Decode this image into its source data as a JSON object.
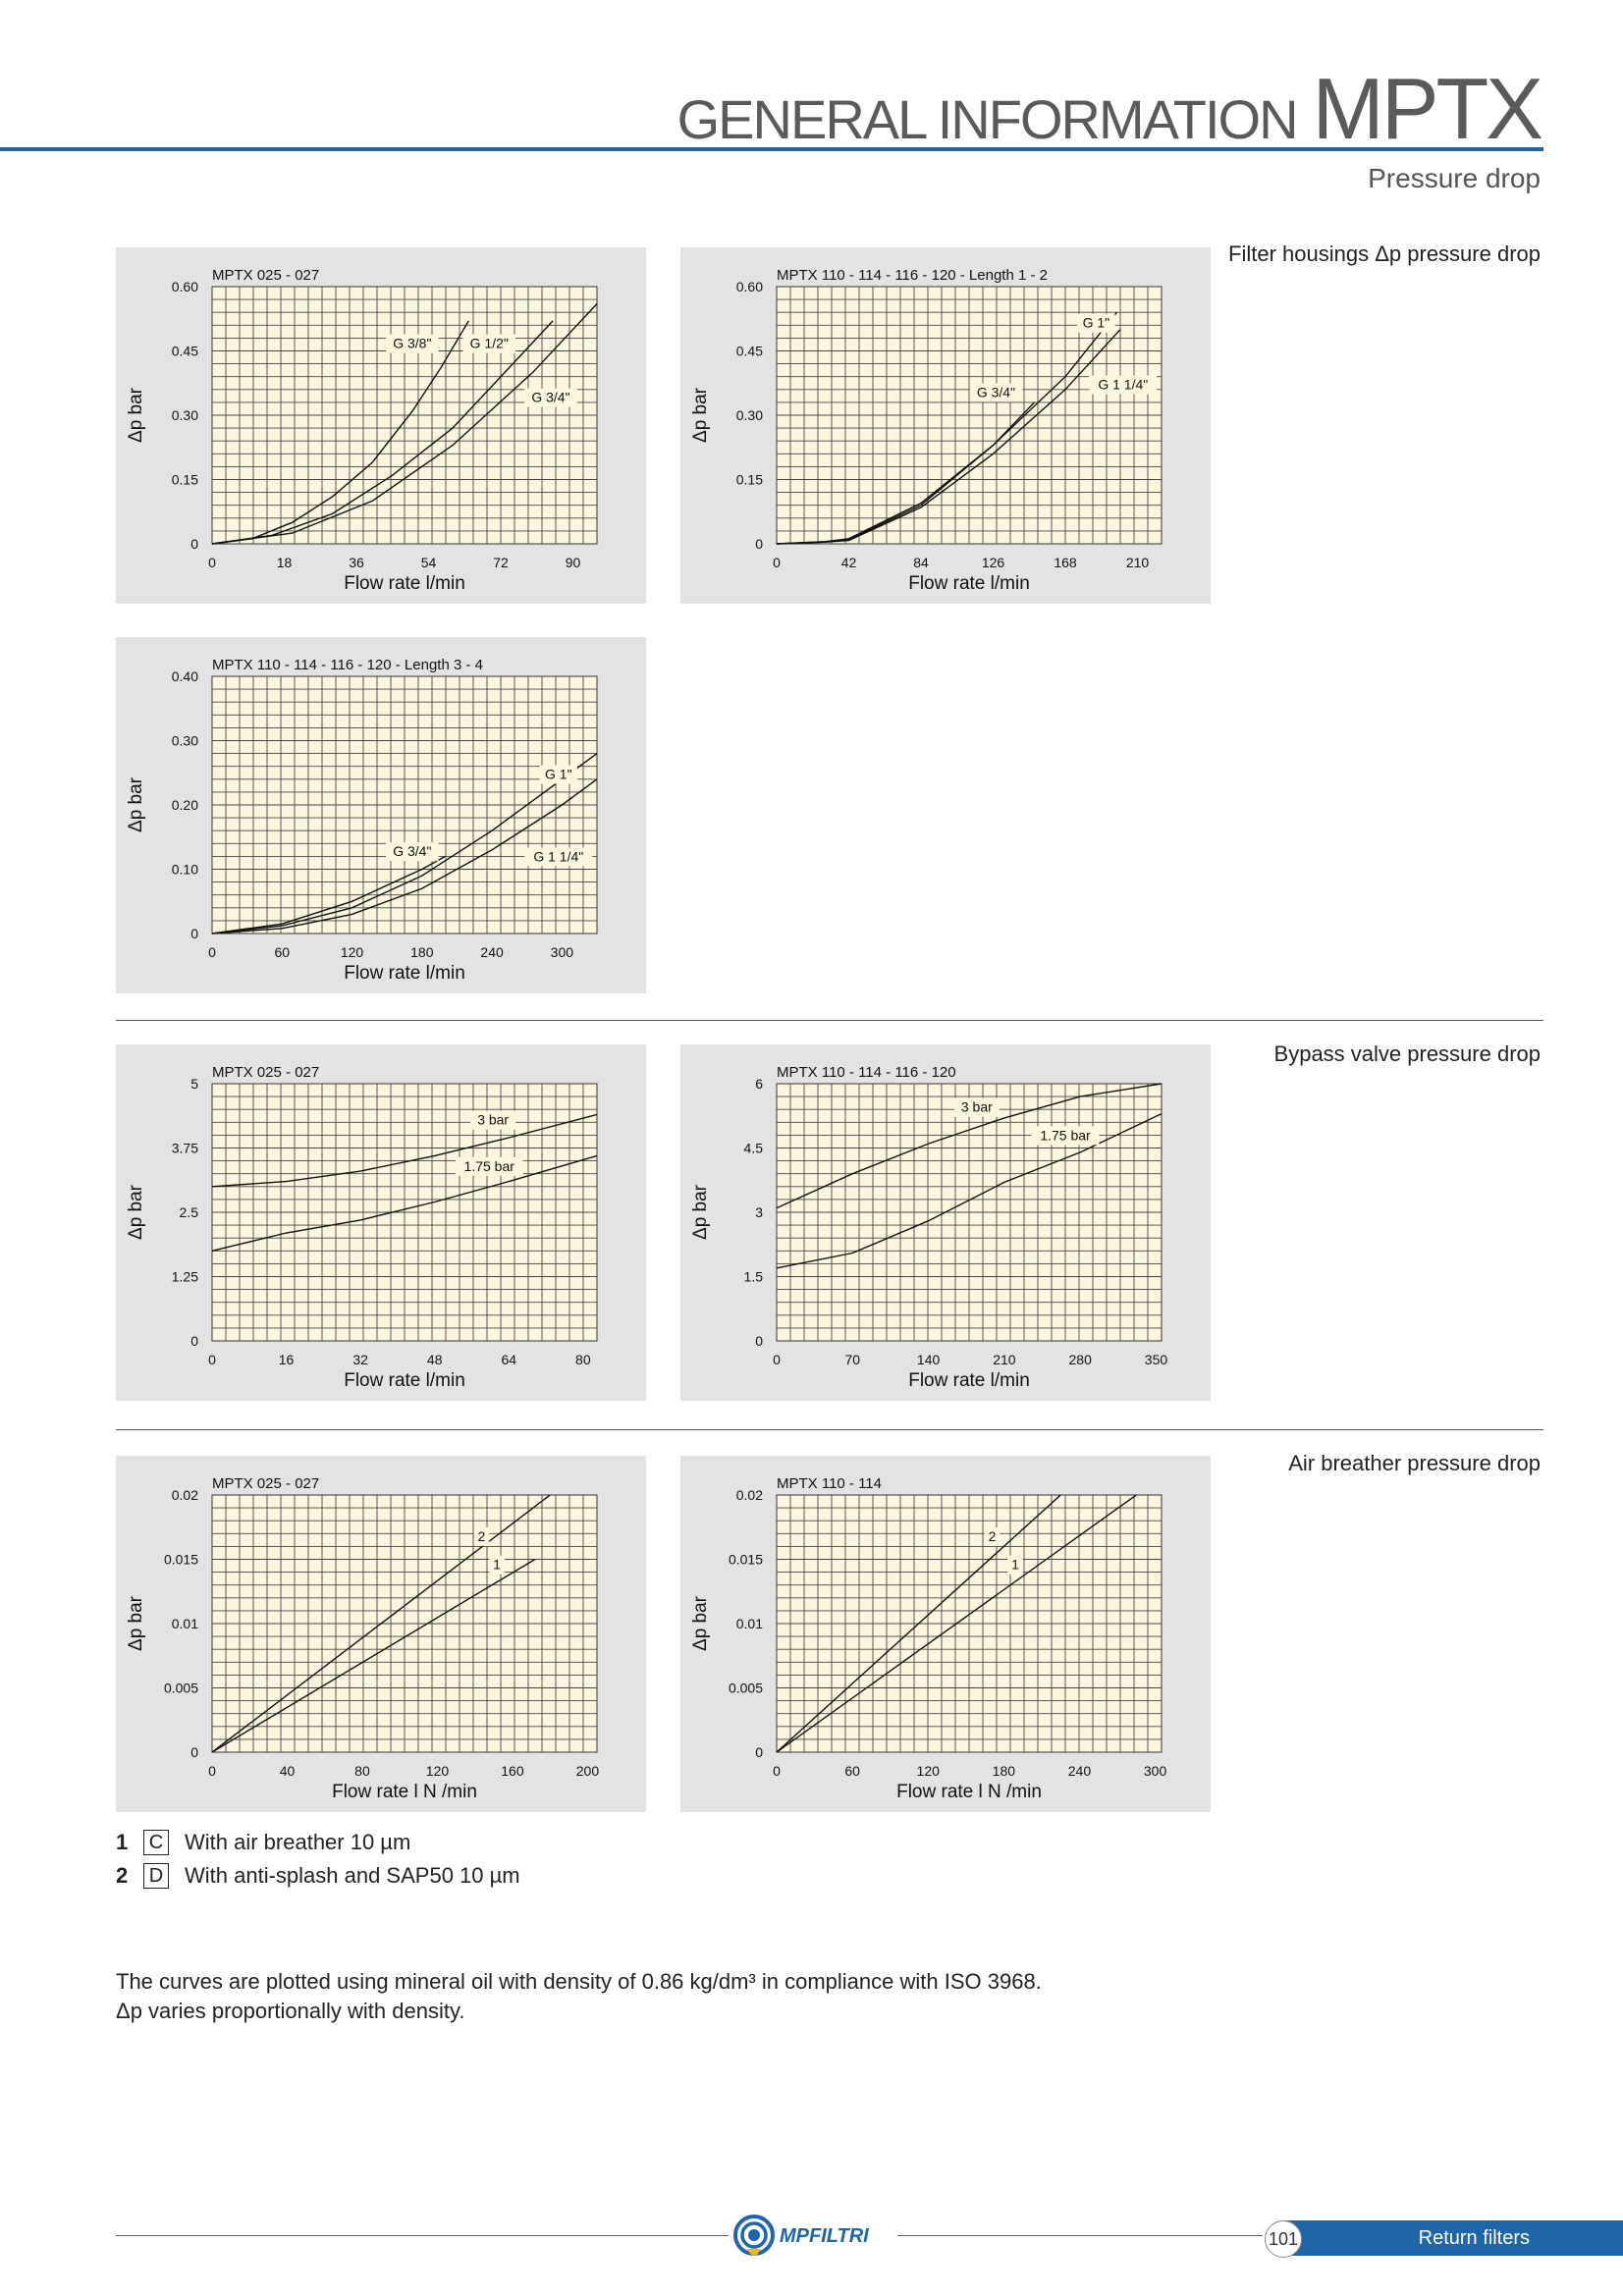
{
  "header": {
    "title_main": "GENERAL INFORMATION",
    "title_product": "MPTX",
    "subtitle": "Pressure drop"
  },
  "sections": {
    "filter_housings": "Filter housings Δp pressure drop",
    "bypass_valve": "Bypass valve pressure drop",
    "air_breather": "Air breather pressure drop"
  },
  "chart_data": [
    {
      "id": "fh1",
      "type": "line",
      "title": "MPTX 025 - 027",
      "xlabel": "Flow rate l/min",
      "ylabel": "Δp bar",
      "xlim": [
        0,
        96
      ],
      "ylim": [
        0,
        0.6
      ],
      "xticks": [
        "0",
        "18",
        "36",
        "54",
        "72",
        "90"
      ],
      "xtick_values": [
        0,
        18,
        36,
        54,
        72,
        90
      ],
      "yticks": [
        "0",
        "0.15",
        "0.30",
        "0.45",
        "0.60"
      ],
      "ytick_values": [
        0,
        0.15,
        0.3,
        0.45,
        0.6
      ],
      "grid": true,
      "series": [
        {
          "name": "G 3/8\"",
          "x": [
            0,
            10,
            20,
            30,
            40,
            50,
            57,
            64
          ],
          "y": [
            0,
            0.012,
            0.05,
            0.11,
            0.19,
            0.31,
            0.41,
            0.52
          ]
        },
        {
          "name": "G 1/2\"",
          "x": [
            0,
            15,
            30,
            45,
            60,
            75,
            85
          ],
          "y": [
            0,
            0.02,
            0.07,
            0.16,
            0.27,
            0.42,
            0.52
          ]
        },
        {
          "name": "G 3/4\"",
          "x": [
            0,
            20,
            40,
            60,
            80,
            96
          ],
          "y": [
            0,
            0.025,
            0.1,
            0.23,
            0.4,
            0.56
          ]
        }
      ]
    },
    {
      "id": "fh2",
      "type": "line",
      "title": "MPTX 110 - 114 - 116 - 120 - Length 1 - 2",
      "xlabel": "Flow rate l/min",
      "ylabel": "Δp bar",
      "xlim": [
        0,
        224
      ],
      "ylim": [
        0,
        0.6
      ],
      "xticks": [
        "0",
        "42",
        "84",
        "126",
        "168",
        "210"
      ],
      "xtick_values": [
        0,
        42,
        84,
        126,
        168,
        210
      ],
      "yticks": [
        "0",
        "0.15",
        "0.30",
        "0.45",
        "0.60"
      ],
      "ytick_values": [
        0,
        0.15,
        0.3,
        0.45,
        0.6
      ],
      "grid": true,
      "series": [
        {
          "name": "G 1\"",
          "x": [
            0,
            28,
            42,
            84,
            126,
            168,
            198
          ],
          "y": [
            0,
            0.005,
            0.01,
            0.09,
            0.23,
            0.39,
            0.54
          ]
        },
        {
          "name": "G 3/4\"",
          "x": [
            0,
            28,
            42,
            84,
            126,
            150
          ],
          "y": [
            0,
            0.005,
            0.012,
            0.095,
            0.23,
            0.33
          ]
        },
        {
          "name": "G 1 1/4\"",
          "x": [
            0,
            28,
            42,
            84,
            126,
            168,
            200
          ],
          "y": [
            0,
            0.004,
            0.008,
            0.085,
            0.21,
            0.36,
            0.5
          ]
        }
      ]
    },
    {
      "id": "fh3",
      "type": "line",
      "title": "MPTX 110 - 114 - 116 - 120 - Length 3 - 4",
      "xlabel": "Flow rate l/min",
      "ylabel": "Δp bar",
      "xlim": [
        0,
        330
      ],
      "ylim": [
        0,
        0.4
      ],
      "xticks": [
        "0",
        "60",
        "120",
        "180",
        "240",
        "300"
      ],
      "xtick_values": [
        0,
        60,
        120,
        180,
        240,
        300
      ],
      "yticks": [
        "0",
        "0.10",
        "0.20",
        "0.30",
        "0.40"
      ],
      "ytick_values": [
        0,
        0.1,
        0.2,
        0.3,
        0.4
      ],
      "grid": true,
      "series": [
        {
          "name": "G 1\"",
          "x": [
            0,
            60,
            120,
            180,
            240,
            300,
            330
          ],
          "y": [
            0,
            0.012,
            0.04,
            0.09,
            0.16,
            0.24,
            0.28
          ]
        },
        {
          "name": "G 3/4\"",
          "x": [
            0,
            60,
            120,
            180,
            200
          ],
          "y": [
            0,
            0.015,
            0.05,
            0.1,
            0.12
          ]
        },
        {
          "name": "G 1 1/4\"",
          "x": [
            0,
            60,
            120,
            180,
            240,
            300,
            330
          ],
          "y": [
            0,
            0.008,
            0.03,
            0.07,
            0.13,
            0.2,
            0.24
          ]
        }
      ]
    },
    {
      "id": "bp1",
      "type": "line",
      "title": "MPTX 025 - 027",
      "xlabel": "Flow rate l/min",
      "ylabel": "Δp bar",
      "xlim": [
        0,
        83
      ],
      "ylim": [
        0,
        5
      ],
      "xticks": [
        "0",
        "16",
        "32",
        "48",
        "64",
        "80"
      ],
      "xtick_values": [
        0,
        16,
        32,
        48,
        64,
        80
      ],
      "yticks": [
        "0",
        "1.25",
        "2.5",
        "3.75",
        "5"
      ],
      "ytick_values": [
        0,
        1.25,
        2.5,
        3.75,
        5
      ],
      "grid": true,
      "series": [
        {
          "name": "3 bar",
          "x": [
            0,
            16,
            32,
            48,
            64,
            83
          ],
          "y": [
            3.0,
            3.1,
            3.3,
            3.6,
            3.95,
            4.4
          ]
        },
        {
          "name": "1.75 bar",
          "x": [
            0,
            16,
            32,
            48,
            64,
            83
          ],
          "y": [
            1.75,
            2.1,
            2.35,
            2.7,
            3.1,
            3.6
          ]
        }
      ]
    },
    {
      "id": "bp2",
      "type": "line",
      "title": "MPTX 110 - 114 - 116 - 120",
      "xlabel": "Flow rate l/min",
      "ylabel": "Δp bar",
      "xlim": [
        0,
        355
      ],
      "ylim": [
        0,
        6
      ],
      "xticks": [
        "0",
        "70",
        "140",
        "210",
        "280",
        "350"
      ],
      "xtick_values": [
        0,
        70,
        140,
        210,
        280,
        350
      ],
      "yticks": [
        "0",
        "1.5",
        "3",
        "4.5",
        "6"
      ],
      "ytick_values": [
        0,
        1.5,
        3,
        4.5,
        6
      ],
      "grid": true,
      "series": [
        {
          "name": "3 bar",
          "x": [
            0,
            70,
            140,
            210,
            280,
            355
          ],
          "y": [
            3.1,
            3.9,
            4.6,
            5.2,
            5.7,
            6.0
          ]
        },
        {
          "name": "1.75 bar",
          "x": [
            0,
            70,
            140,
            210,
            280,
            355
          ],
          "y": [
            1.7,
            2.05,
            2.8,
            3.7,
            4.4,
            5.3
          ]
        }
      ]
    },
    {
      "id": "ab1",
      "type": "line",
      "title": "MPTX 025 - 027",
      "xlabel": "Flow rate l N /min",
      "ylabel": "Δp bar",
      "xlim": [
        0,
        205
      ],
      "ylim": [
        0,
        0.02
      ],
      "xticks": [
        "0",
        "40",
        "80",
        "120",
        "160",
        "200"
      ],
      "xtick_values": [
        0,
        40,
        80,
        120,
        160,
        200
      ],
      "yticks": [
        "0",
        "0.005",
        "0.01",
        "0.015",
        "0.02"
      ],
      "ytick_values": [
        0,
        0.005,
        0.01,
        0.015,
        0.02
      ],
      "grid": true,
      "series": [
        {
          "name": "2",
          "x": [
            0,
            180
          ],
          "y": [
            0,
            0.02
          ]
        },
        {
          "name": "1",
          "x": [
            0,
            172
          ],
          "y": [
            0,
            0.015
          ]
        }
      ]
    },
    {
      "id": "ab2",
      "type": "line",
      "title": "MPTX 110 - 114",
      "xlabel": "Flow rate l N /min",
      "ylabel": "Δp bar",
      "xlim": [
        0,
        305
      ],
      "ylim": [
        0,
        0.02
      ],
      "xticks": [
        "0",
        "60",
        "120",
        "180",
        "240",
        "300"
      ],
      "xtick_values": [
        0,
        60,
        120,
        180,
        240,
        300
      ],
      "yticks": [
        "0",
        "0.005",
        "0.01",
        "0.015",
        "0.02"
      ],
      "ytick_values": [
        0,
        0.005,
        0.01,
        0.015,
        0.02
      ],
      "grid": true,
      "series": [
        {
          "name": "2",
          "x": [
            0,
            225
          ],
          "y": [
            0,
            0.02
          ]
        },
        {
          "name": "1",
          "x": [
            0,
            285
          ],
          "y": [
            0,
            0.02
          ]
        }
      ]
    }
  ],
  "legend": [
    {
      "num": "1",
      "code": "C",
      "text": "With air breather 10 µm"
    },
    {
      "num": "2",
      "code": "D",
      "text": "With anti-splash and SAP50 10 µm"
    }
  ],
  "notes": {
    "line1": "The curves are plotted using mineral oil with density of 0.86 kg/dm³ in compliance with ISO 3968.",
    "line2": "Δp varies proportionally with density."
  },
  "footer": {
    "brand": "MPFILTRI",
    "page_number": "101",
    "section": "Return filters"
  },
  "colors": {
    "accent": "#1e66a8",
    "panel": "#e3e3e3",
    "plot_bg": "#fdf6df",
    "logo_yellow": "#f2b51b"
  }
}
